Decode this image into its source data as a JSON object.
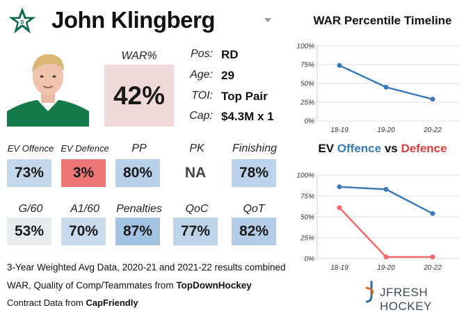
{
  "header": {
    "player_name": "John Klingberg"
  },
  "war": {
    "label": "WAR%",
    "value": "42%"
  },
  "info": [
    {
      "key": "Pos:",
      "value": "RD"
    },
    {
      "key": "Age:",
      "value": "29"
    },
    {
      "key": "TOI:",
      "value": "Top Pair"
    },
    {
      "key": "Cap:",
      "value": "$4.3M x 1"
    }
  ],
  "stats_row1": [
    {
      "label": "EV Offence",
      "value": "73%",
      "color": "#c4d8ec"
    },
    {
      "label": "EV Defence",
      "value": "3%",
      "color": "#ef7676"
    },
    {
      "label": "PP",
      "value": "80%",
      "color": "#b7d1ea"
    },
    {
      "label": "PK",
      "value": "NA",
      "color": "#ffffff"
    },
    {
      "label": "Finishing",
      "value": "78%",
      "color": "#bcd4eb"
    }
  ],
  "stats_row2": [
    {
      "label": "G/60",
      "value": "53%",
      "color": "#e8ebee"
    },
    {
      "label": "A1/60",
      "value": "70%",
      "color": "#c8daed"
    },
    {
      "label": "Penalties",
      "value": "87%",
      "color": "#a3c3e3"
    },
    {
      "label": "QoC",
      "value": "77%",
      "color": "#bdd5eb"
    },
    {
      "label": "QoT",
      "value": "82%",
      "color": "#b3cde8"
    }
  ],
  "footer": {
    "line1": "3-Year Weighted Avg Data, 2020-21 and 2021-22 results combined",
    "line2_prefix": "WAR, Quality of Comp/Teammates from ",
    "line2_source": "TopDownHockey",
    "line3_prefix": "Contract Data from ",
    "line3_source": "CapFriendly",
    "brand": "JFRESH HOCKEY"
  },
  "chart_data": [
    {
      "type": "line",
      "title": "WAR Percentile Timeline",
      "categories": [
        "18-19",
        "19-20",
        "20-22"
      ],
      "series": [
        {
          "values": [
            74,
            45,
            29
          ],
          "color": "#3a7ab8"
        }
      ],
      "ylim": [
        0,
        100
      ],
      "yticks": [
        "0%",
        "25%",
        "50%",
        "75%",
        "100%"
      ],
      "grid": true
    },
    {
      "type": "line",
      "title_parts": [
        {
          "text": "EV ",
          "color": "#111111"
        },
        {
          "text": "Offence",
          "color": "#3a7ab8"
        },
        {
          "text": " vs ",
          "color": "#111111"
        },
        {
          "text": "Defence",
          "color": "#e23c3c"
        }
      ],
      "categories": [
        "18-19",
        "19-20",
        "20-22"
      ],
      "series": [
        {
          "name": "Offence",
          "values": [
            86,
            83,
            54
          ],
          "color": "#3a7ab8"
        },
        {
          "name": "Defence",
          "values": [
            61,
            2,
            2
          ],
          "color": "#ef6a6a"
        }
      ],
      "ylim": [
        0,
        100
      ],
      "yticks": [
        "0%",
        "25%",
        "50%",
        "75%",
        "100%"
      ],
      "grid": true
    }
  ]
}
